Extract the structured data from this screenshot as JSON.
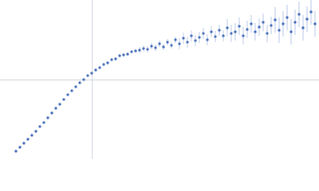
{
  "chart_data": {
    "type": "scatter",
    "x": [
      20,
      25,
      30,
      35,
      40,
      45,
      50,
      55,
      60,
      65,
      70,
      75,
      80,
      85,
      90,
      95,
      100,
      105,
      110,
      115,
      120,
      125,
      130,
      135,
      140,
      145,
      150,
      155,
      160,
      165,
      170,
      175,
      180,
      185,
      190,
      195,
      200,
      205,
      210,
      215,
      220,
      225,
      230,
      235,
      240,
      245,
      250,
      255,
      260,
      265,
      270,
      275,
      280,
      285,
      290,
      295,
      300,
      305,
      310,
      315,
      320,
      325,
      330,
      335,
      340,
      345,
      350,
      355,
      360,
      365,
      370,
      375,
      380,
      385,
      390,
      395
    ],
    "series": [
      {
        "color": "#3b65b5",
        "error_color": "#a9bde3",
        "values": [
          10,
          15,
          20,
          25,
          30,
          35,
          41,
          46,
          52,
          58,
          64,
          69,
          75,
          81,
          86,
          91,
          96,
          100,
          105,
          108,
          112,
          115,
          119,
          121,
          125,
          126,
          130,
          131,
          132,
          135,
          136,
          137,
          139,
          138,
          142,
          140,
          145,
          141,
          147,
          143,
          150,
          145,
          152,
          147,
          155,
          149,
          153,
          158,
          150,
          160,
          154,
          162,
          155,
          165,
          158,
          160,
          167,
          155,
          163,
          170,
          160,
          166,
          172,
          158,
          168,
          175,
          162,
          170,
          178,
          160,
          172,
          182,
          165,
          176,
          185,
          170
        ],
        "errors": [
          1,
          1,
          1,
          1,
          1,
          1,
          1,
          1,
          1,
          1,
          1,
          1,
          1,
          1,
          1,
          1,
          1,
          1,
          1,
          1,
          2,
          2,
          2,
          2,
          2,
          2,
          2,
          2,
          2,
          2,
          2,
          4,
          4,
          4,
          4,
          4,
          4,
          4,
          4,
          4,
          4,
          7,
          7,
          7,
          7,
          7,
          7,
          7,
          7,
          7,
          7,
          7,
          7,
          11,
          11,
          11,
          11,
          11,
          11,
          11,
          11,
          11,
          11,
          11,
          11,
          16,
          16,
          16,
          16,
          16,
          16,
          16,
          16,
          16,
          16,
          16
        ]
      }
    ],
    "xlim": [
      0,
      400
    ],
    "ylim": [
      0,
      200
    ]
  }
}
